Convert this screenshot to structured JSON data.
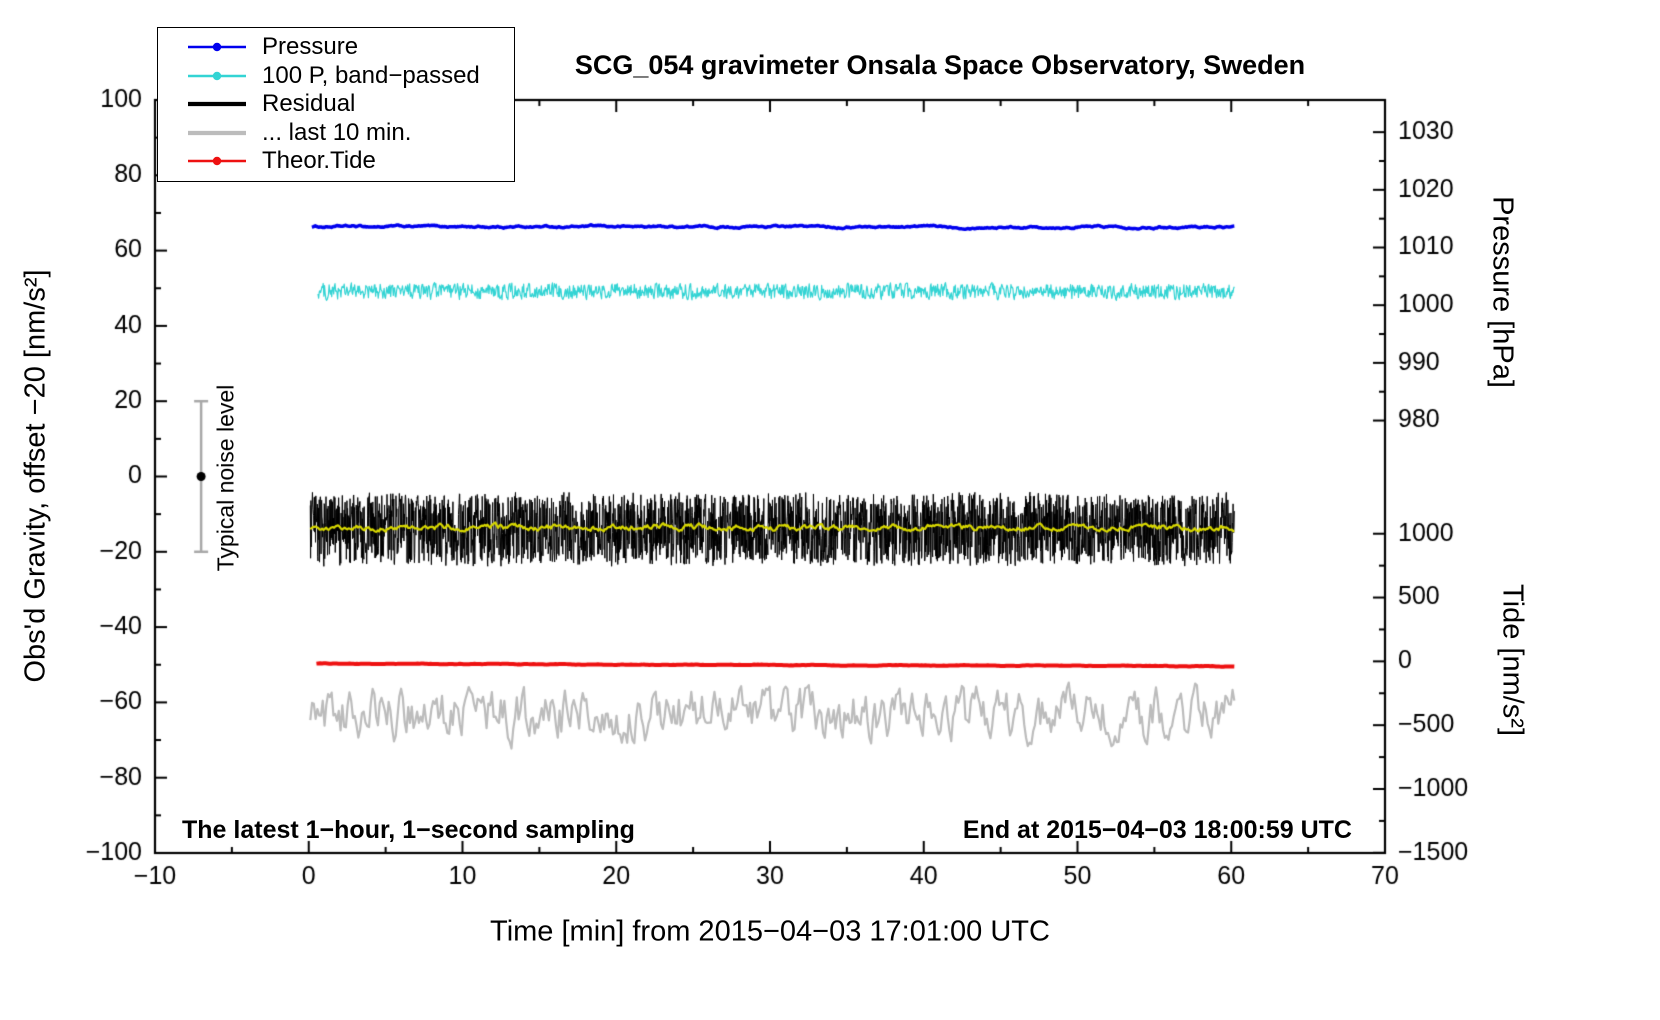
{
  "title": "SCG_054 gravimeter Onsala Space Observatory, Sweden",
  "annotations": {
    "sampling": "The latest 1−hour, 1−second sampling",
    "end_time": "End at 2015−04−03 18:00:59 UTC",
    "noise_label": "Typical noise level"
  },
  "axes": {
    "x_label": "Time [min] from 2015−04−03 17:01:00 UTC",
    "y_left_label": "Obs'd Gravity, offset −20 [nm/s²]",
    "y_right_top_label": "Pressure [hPa]",
    "y_right_bottom_label": "Tide [nm/s²]"
  },
  "chart_data": {
    "type": "line",
    "xlim": [
      -10,
      70
    ],
    "ylim_left": [
      -100,
      100
    ],
    "x_ticks": [
      -10,
      0,
      10,
      20,
      30,
      40,
      50,
      60,
      70
    ],
    "x_minor_step": 5,
    "y_ticks_left": [
      -100,
      -80,
      -60,
      -40,
      -20,
      0,
      20,
      40,
      60,
      80,
      100
    ],
    "y_minor_step": 10,
    "right_axis_pressure": {
      "ticks": [
        1030,
        1020,
        1010,
        1000,
        990,
        980
      ],
      "minor_step": 5,
      "range": [
        980,
        1030
      ],
      "scale": 1.532,
      "offset": -1486.5
    },
    "right_axis_tide": {
      "ticks": [
        1000,
        500,
        0,
        -500,
        -1000,
        -1500
      ],
      "minor_step": 250,
      "range": [
        -1500,
        1000
      ],
      "scale": 0.0339,
      "offset": -49.1
    },
    "noise_bar": {
      "x": -7,
      "center": 0,
      "half_range": 20,
      "bar_color": "#a8a8a8",
      "dot_color": "#000000"
    },
    "frame_color": "#000000",
    "draw_order": [
      3,
      2,
      5,
      0,
      1,
      4
    ],
    "series": [
      {
        "name": "Pressure",
        "color": "#0000ee",
        "marker": "line-dot",
        "baseline": 66.3,
        "amplitude": 0.22,
        "smooth": 0.9,
        "width": 3.5,
        "points": 800,
        "x_start": 0.2,
        "x_end": 60.2,
        "slope": 0,
        "right_axis_value_hpa": 1013.4
      },
      {
        "name": "100 P, band−passed",
        "color": "#33d4d4",
        "marker": "line-dot",
        "baseline": 49.2,
        "amplitude": 1.15,
        "smooth": 0.2,
        "width": 1.2,
        "points": 1400,
        "x_start": 0.6,
        "x_end": 60.2,
        "slope": 0
      },
      {
        "name": "Residual",
        "color": "#000000",
        "marker": "line",
        "baseline": -14.0,
        "amplitude": 5.5,
        "smooth": 0.05,
        "width": 1,
        "points": 3000,
        "x_start": 0.1,
        "x_end": 60.2,
        "slope": 0
      },
      {
        "name": "... last 10 min.",
        "color": "#bcbcbc",
        "marker": "line",
        "baseline": -63.0,
        "amplitude": 3.8,
        "smooth": 0.55,
        "width": 2.2,
        "points": 520,
        "x_start": 0.1,
        "x_end": 60.2,
        "slope": 0
      },
      {
        "name": "Theor.Tide",
        "color": "#ee1111",
        "marker": "line-dot",
        "baseline": -49.7,
        "amplitude": 0.06,
        "smooth": 0.9,
        "width": 4,
        "points": 500,
        "x_start": 0.5,
        "x_end": 60.2,
        "slope": -0.012,
        "right_axis_value_tide": -20
      },
      {
        "name": "Residual smoothed",
        "color": "#d8d800",
        "marker": "none",
        "baseline": -13.6,
        "amplitude": 0.5,
        "smooth": 0.75,
        "width": 2.2,
        "points": 700,
        "x_start": 0.1,
        "x_end": 60.2,
        "slope": 0,
        "in_legend": false
      }
    ]
  }
}
